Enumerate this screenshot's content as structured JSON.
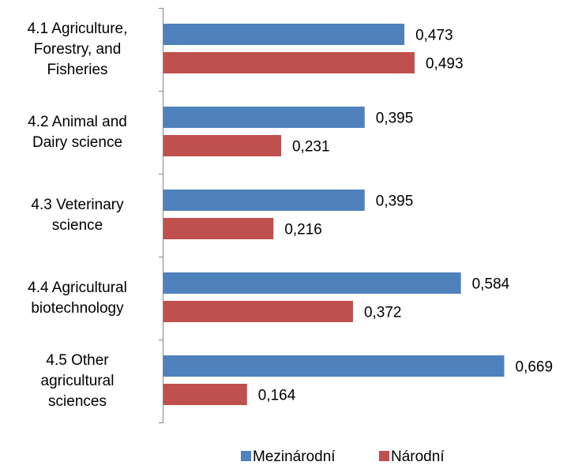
{
  "chart_data": {
    "type": "bar",
    "orientation": "horizontal",
    "categories": [
      "4.1 Agriculture,\nForestry, and\nFisheries",
      "4.2 Animal and\nDairy science",
      "4.3 Veterinary\nscience",
      "4.4 Agricultural\nbiotechnology",
      "4.5 Other\nagricultural\nsciences"
    ],
    "series": [
      {
        "name": "Mezinárodní",
        "color": "#4f81bd",
        "values": [
          0.473,
          0.395,
          0.395,
          0.584,
          0.669
        ],
        "value_labels": [
          "0,473",
          "0,395",
          "0,395",
          "0,584",
          "0,669"
        ]
      },
      {
        "name": "Národní",
        "color": "#c0504d",
        "values": [
          0.493,
          0.231,
          0.216,
          0.372,
          0.164
        ],
        "value_labels": [
          "0,493",
          "0,231",
          "0,216",
          "0,372",
          "0,164"
        ]
      }
    ],
    "legend": "bottom"
  }
}
